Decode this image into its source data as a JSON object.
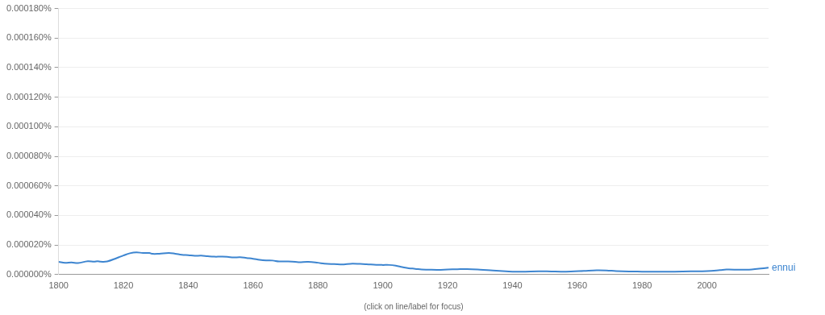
{
  "chart_data": {
    "type": "line",
    "x_label": "(click on line/label for focus)",
    "xlim": [
      1800,
      2019
    ],
    "xticks": [
      1800,
      1820,
      1840,
      1860,
      1880,
      1900,
      1920,
      1940,
      1960,
      1980,
      2000
    ],
    "ylim": [
      0,
      0.00018
    ],
    "yticks": [
      {
        "value": 0,
        "label": "0.000000%"
      },
      {
        "value": 2e-05,
        "label": "0.000020%"
      },
      {
        "value": 4e-05,
        "label": "0.000040%"
      },
      {
        "value": 6e-05,
        "label": "0.000060%"
      },
      {
        "value": 8e-05,
        "label": "0.000080%"
      },
      {
        "value": 0.0001,
        "label": "0.000100%"
      },
      {
        "value": 0.00012,
        "label": "0.000120%"
      },
      {
        "value": 0.00014,
        "label": "0.000140%"
      },
      {
        "value": 0.00016,
        "label": "0.000160%"
      },
      {
        "value": 0.00018,
        "label": "0.000180%"
      }
    ],
    "grid": true,
    "x": [
      1800,
      1802,
      1804,
      1806,
      1809,
      1811,
      1812,
      1813,
      1815,
      1818,
      1820,
      1822,
      1824,
      1826,
      1828,
      1829,
      1831,
      1834,
      1836,
      1838,
      1840,
      1842,
      1844,
      1846,
      1848,
      1850,
      1852,
      1854,
      1856,
      1858,
      1860,
      1862,
      1864,
      1866,
      1868,
      1872,
      1874,
      1877,
      1880,
      1882,
      1885,
      1888,
      1890,
      1893,
      1895,
      1898,
      1900,
      1902,
      1904,
      1906,
      1908,
      1910,
      1912,
      1914,
      1917,
      1920,
      1923,
      1926,
      1930,
      1934,
      1938,
      1941,
      1944,
      1948,
      1952,
      1955,
      1958,
      1962,
      1966,
      1969,
      1972,
      1976,
      1980,
      1984,
      1990,
      1995,
      2000,
      2004,
      2006,
      2010,
      2013,
      2016,
      2019
    ],
    "series": [
      {
        "name": "ennui",
        "color": "#3d85d0",
        "values": [
          8.6e-06,
          7.9e-06,
          8.2e-06,
          7.8e-06,
          9e-06,
          8.7e-06,
          9e-06,
          8.7e-06,
          8.9e-06,
          1.12e-05,
          1.29e-05,
          1.44e-05,
          1.5e-05,
          1.46e-05,
          1.46e-05,
          1.4e-05,
          1.41e-05,
          1.46e-05,
          1.41e-05,
          1.34e-05,
          1.31e-05,
          1.27e-05,
          1.28e-05,
          1.24e-05,
          1.21e-05,
          1.21e-05,
          1.2e-05,
          1.16e-05,
          1.17e-05,
          1.12e-05,
          1.07e-05,
          1e-05,
          9.6e-06,
          9.5e-06,
          8.9e-06,
          8.8e-06,
          8.4e-06,
          8.6e-06,
          8e-06,
          7.4e-06,
          7.1e-06,
          6.9e-06,
          7.3e-06,
          7.2e-06,
          7e-06,
          6.6e-06,
          6.5e-06,
          6.5e-06,
          6e-06,
          5.1e-06,
          4.3e-06,
          3.9e-06,
          3.4e-06,
          3.3e-06,
          3.2e-06,
          3.4e-06,
          3.6e-06,
          3.7e-06,
          3.3e-06,
          2.7e-06,
          2.2e-06,
          1.9e-06,
          2e-06,
          2.2e-06,
          2.1e-06,
          2e-06,
          2.1e-06,
          2.5e-06,
          2.9e-06,
          2.8e-06,
          2.4e-06,
          2.1e-06,
          2e-06,
          1.9e-06,
          2e-06,
          2.2e-06,
          2.4e-06,
          3e-06,
          3.4e-06,
          3.3e-06,
          3.3e-06,
          4e-06,
          4.6e-06
        ]
      }
    ]
  }
}
